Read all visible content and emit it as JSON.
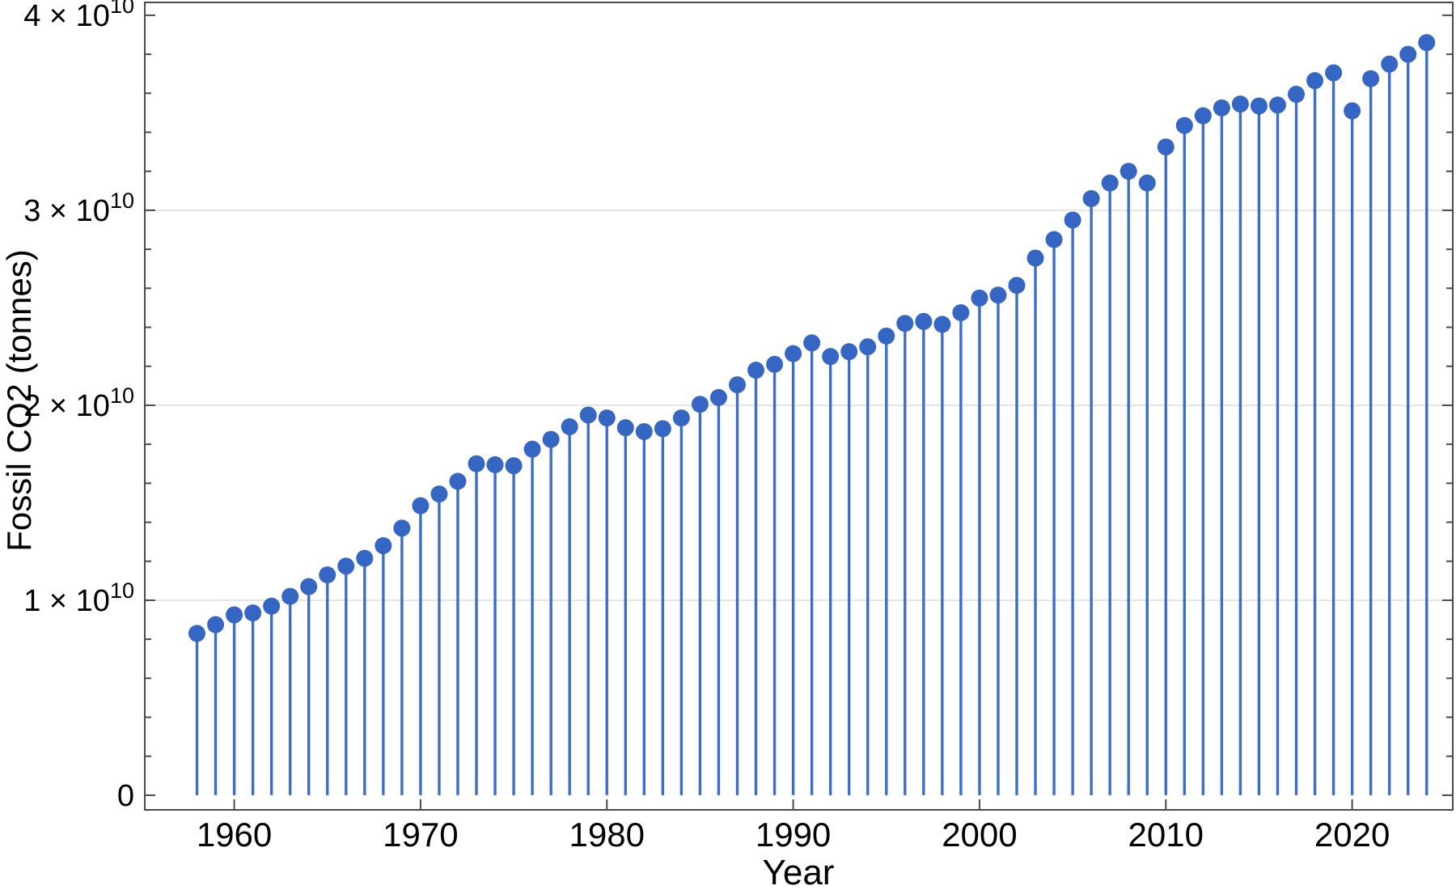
{
  "chart_data": {
    "type": "stem",
    "title": "",
    "xlabel": "Year",
    "ylabel": "Fossil CO2 (tonnes)",
    "x_range": [
      1955.2,
      2025.4
    ],
    "y_range": [
      -750000000.0,
      40660000000.0
    ],
    "grid": "horizontal-major-only",
    "gridline_values": [
      10000000000.0,
      20000000000.0,
      30000000000.0
    ],
    "x_ticks": [
      {
        "value": 1960,
        "label": "1960"
      },
      {
        "value": 1970,
        "label": "1970"
      },
      {
        "value": 1980,
        "label": "1980"
      },
      {
        "value": 1990,
        "label": "1990"
      },
      {
        "value": 2000,
        "label": "2000"
      },
      {
        "value": 2010,
        "label": "2010"
      },
      {
        "value": 2020,
        "label": "2020"
      }
    ],
    "y_ticks": [
      {
        "value": 0,
        "base": "0",
        "sup": ""
      },
      {
        "value": 10000000000.0,
        "base": "1 × 10",
        "sup": "10"
      },
      {
        "value": 20000000000.0,
        "base": "2 × 10",
        "sup": "10"
      },
      {
        "value": 30000000000.0,
        "base": "3 × 10",
        "sup": "10"
      },
      {
        "value": 40000000000.0,
        "base": "4 × 10",
        "sup": "10"
      }
    ],
    "y_minor_tick_step": 2000000000.0,
    "x": [
      1958,
      1959,
      1960,
      1961,
      1962,
      1963,
      1964,
      1965,
      1966,
      1967,
      1968,
      1969,
      1970,
      1971,
      1972,
      1973,
      1974,
      1975,
      1976,
      1977,
      1978,
      1979,
      1980,
      1981,
      1982,
      1983,
      1984,
      1985,
      1986,
      1987,
      1988,
      1989,
      1990,
      1991,
      1992,
      1993,
      1994,
      1995,
      1996,
      1997,
      1998,
      1999,
      2000,
      2001,
      2002,
      2003,
      2004,
      2005,
      2006,
      2007,
      2008,
      2009,
      2010,
      2011,
      2012,
      2013,
      2014,
      2015,
      2016,
      2017,
      2018,
      2019,
      2020,
      2021,
      2022,
      2023,
      2024
    ],
    "values": [
      8300000000.0,
      8750000000.0,
      9250000000.0,
      9350000000.0,
      9700000000.0,
      10200000000.0,
      10700000000.0,
      11300000000.0,
      11750000000.0,
      12150000000.0,
      12800000000.0,
      13700000000.0,
      14850000000.0,
      15450000000.0,
      16100000000.0,
      17000000000.0,
      16950000000.0,
      16900000000.0,
      17750000000.0,
      18250000000.0,
      18900000000.0,
      19500000000.0,
      19350000000.0,
      18850000000.0,
      18650000000.0,
      18800000000.0,
      19350000000.0,
      20050000000.0,
      20400000000.0,
      21050000000.0,
      21800000000.0,
      22100000000.0,
      22650000000.0,
      23200000000.0,
      22500000000.0,
      22750000000.0,
      23000000000.0,
      23550000000.0,
      24200000000.0,
      24300000000.0,
      24150000000.0,
      24750000000.0,
      25500000000.0,
      25650000000.0,
      26150000000.0,
      27550000000.0,
      28500000000.0,
      29500000000.0,
      30600000000.0,
      31400000000.0,
      32000000000.0,
      31400000000.0,
      33250000000.0,
      34350000000.0,
      34850000000.0,
      35250000000.0,
      35450000000.0,
      35350000000.0,
      35400000000.0,
      35950000000.0,
      36650000000.0,
      37050000000.0,
      35100000000.0,
      36750000000.0,
      37500000000.0,
      38000000000.0,
      38600000000.0
    ],
    "colors": {
      "stem": "#3e6dc9",
      "point": "#3566c4",
      "gridline": "#e0e0e0",
      "frame": "#4a4a4a",
      "label_text": "#000000"
    },
    "legend": "none"
  }
}
